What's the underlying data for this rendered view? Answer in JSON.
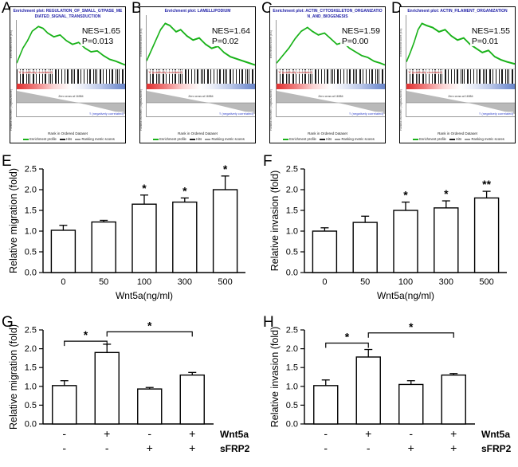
{
  "figure": {
    "panel_letters": [
      "A",
      "B",
      "C",
      "D",
      "E",
      "F",
      "G",
      "H"
    ]
  },
  "gsea_common": {
    "title_prefix": "Enrichment plot:",
    "ylabel_es": "Enrichment score (ES)",
    "ylabel_rank": "Ranked list metric (Signal2Noise)",
    "xlabel": "Rank in Ordered Dataset",
    "zero_cross": "Zero cross at 16984",
    "pos_label": "'h' (positively correlated)",
    "neg_label": "'l' (negatively correlated)",
    "legend_profile": "Enrichment profile",
    "legend_hits": "Hits",
    "legend_rank": "Ranking metric scores"
  },
  "chart_data": [
    {
      "id": "A",
      "type": "gsea",
      "title": "REGULATION_OF_SMALL_GTPASE_MEDIATED_SIGNAL_TRANSDUCTION",
      "nes": "NES=1.65",
      "p": "P=0.013",
      "nes_value": 1.65,
      "p_value": 0.013
    },
    {
      "id": "B",
      "type": "gsea",
      "title": "LAMELLIPODIUM",
      "nes": "NES=1.64",
      "p": "P=0.02",
      "nes_value": 1.64,
      "p_value": 0.02
    },
    {
      "id": "C",
      "type": "gsea",
      "title": "ACTIN_CYTOSKELETON_ORGANIZATION_AND_BIOGENESIS",
      "nes": "NES=1.59",
      "p": "P=0.00",
      "nes_value": 1.59,
      "p_value": 0.0
    },
    {
      "id": "D",
      "type": "gsea",
      "title": "ACTIN_FILAMENT_ORGANIZATION",
      "nes": "NES=1.55",
      "p": "P=0.01",
      "nes_value": 1.55,
      "p_value": 0.01
    },
    {
      "id": "E",
      "type": "bar",
      "ylabel": "Relative migration (fold)",
      "xlabel": "Wnt5a(ng/ml)",
      "categories": [
        "0",
        "50",
        "100",
        "300",
        "500"
      ],
      "values": [
        1.02,
        1.22,
        1.65,
        1.7,
        2.0
      ],
      "errors": [
        0.12,
        0.04,
        0.22,
        0.1,
        0.33
      ],
      "sig": [
        "",
        "",
        "*",
        "*",
        "*"
      ],
      "ylim": [
        0,
        2.5
      ],
      "ytick_step": 0.5
    },
    {
      "id": "F",
      "type": "bar",
      "ylabel": "Relative invasion (fold)",
      "xlabel": "Wnt5a(ng/ml)",
      "categories": [
        "0",
        "50",
        "100",
        "300",
        "500"
      ],
      "values": [
        1.0,
        1.21,
        1.5,
        1.56,
        1.8
      ],
      "errors": [
        0.08,
        0.15,
        0.2,
        0.17,
        0.16
      ],
      "sig": [
        "",
        "",
        "*",
        "*",
        "**"
      ],
      "ylim": [
        0,
        2.5
      ],
      "ytick_step": 0.5
    },
    {
      "id": "G",
      "type": "bar",
      "ylabel": "Relative migration (fold)",
      "xlabel": "",
      "values": [
        1.02,
        1.9,
        0.93,
        1.3
      ],
      "errors": [
        0.13,
        0.22,
        0.04,
        0.07
      ],
      "sig": [
        "",
        "",
        "",
        ""
      ],
      "ylim": [
        0,
        2.5
      ],
      "ytick_step": 0.5,
      "condition_rows": [
        {
          "label": "Wnt5a",
          "signs": [
            "-",
            "+",
            "-",
            "+"
          ]
        },
        {
          "label": "sFRP2",
          "signs": [
            "-",
            "-",
            "+",
            "+"
          ]
        }
      ],
      "brackets": [
        {
          "from": 0,
          "to": 1,
          "label": "*",
          "height": 2.2
        },
        {
          "from": 1,
          "to": 3,
          "label": "*",
          "height": 2.45
        }
      ]
    },
    {
      "id": "H",
      "type": "bar",
      "ylabel": "Relative invasion (fold)",
      "xlabel": "",
      "values": [
        1.02,
        1.78,
        1.05,
        1.3
      ],
      "errors": [
        0.15,
        0.2,
        0.1,
        0.04
      ],
      "sig": [
        "",
        "",
        "",
        ""
      ],
      "ylim": [
        0,
        2.5
      ],
      "ytick_step": 0.5,
      "condition_rows": [
        {
          "label": "Wnt5a",
          "signs": [
            "-",
            "+",
            "-",
            "+"
          ]
        },
        {
          "label": "sFRP2",
          "signs": [
            "-",
            "-",
            "+",
            "+"
          ]
        }
      ],
      "brackets": [
        {
          "from": 0,
          "to": 1,
          "label": "*",
          "height": 2.15
        },
        {
          "from": 1,
          "to": 3,
          "label": "*",
          "height": 2.42
        }
      ]
    }
  ]
}
